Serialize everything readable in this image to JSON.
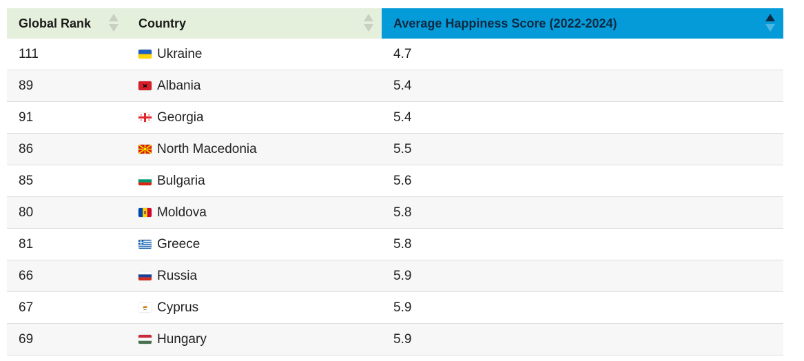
{
  "table": {
    "columns": [
      {
        "label": "Global Rank",
        "sorted": "none"
      },
      {
        "label": "Country",
        "sorted": "none"
      },
      {
        "label": "Average Happiness Score (2022-2024)",
        "sorted": "ascending"
      }
    ],
    "rows": [
      {
        "rank": "111",
        "country": "Ukraine",
        "flag": "ukraine-flag-icon",
        "score": "4.7"
      },
      {
        "rank": "89",
        "country": "Albania",
        "flag": "albania-flag-icon",
        "score": "5.4"
      },
      {
        "rank": "91",
        "country": "Georgia",
        "flag": "georgia-flag-icon",
        "score": "5.4"
      },
      {
        "rank": "86",
        "country": "North Macedonia",
        "flag": "north-macedonia-flag-icon",
        "score": "5.5"
      },
      {
        "rank": "85",
        "country": "Bulgaria",
        "flag": "bulgaria-flag-icon",
        "score": "5.6"
      },
      {
        "rank": "80",
        "country": "Moldova",
        "flag": "moldova-flag-icon",
        "score": "5.8"
      },
      {
        "rank": "81",
        "country": "Greece",
        "flag": "greece-flag-icon",
        "score": "5.8"
      },
      {
        "rank": "66",
        "country": "Russia",
        "flag": "russia-flag-icon",
        "score": "5.9"
      },
      {
        "rank": "67",
        "country": "Cyprus",
        "flag": "cyprus-flag-icon",
        "score": "5.9"
      },
      {
        "rank": "69",
        "country": "Hungary",
        "flag": "hungary-flag-icon",
        "score": "5.9"
      }
    ]
  },
  "colors": {
    "header_bg": "#e5f0dc",
    "active_header_bg": "#059bd9",
    "row_alt_bg": "#f7f7f7",
    "row_border": "#dddddd"
  }
}
